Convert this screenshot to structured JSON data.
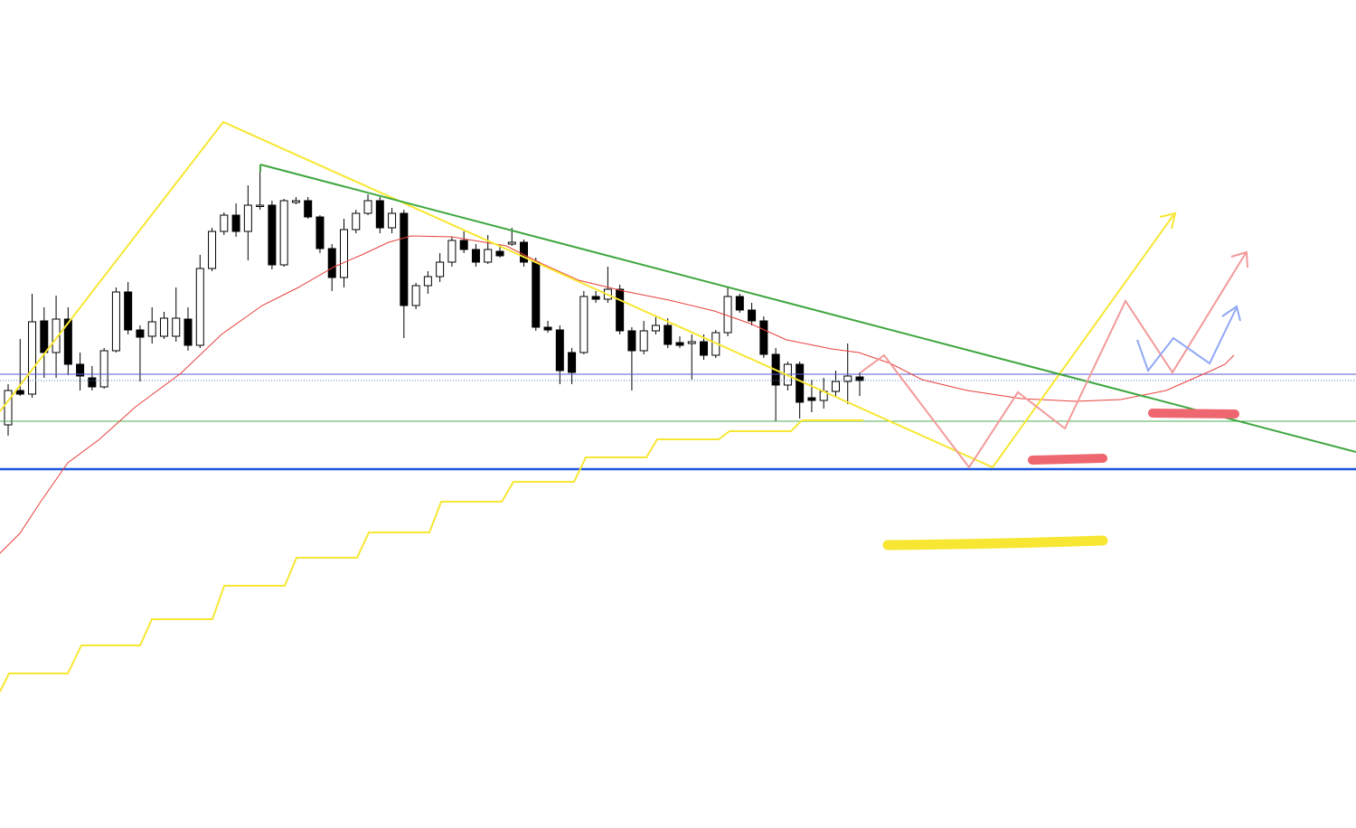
{
  "chart_data": {
    "type": "candlestick",
    "ylim": [
      0,
      916
    ],
    "up_color": "#ffffff",
    "down_color": "#000000",
    "open": [
      446,
      484,
      480,
      561,
      526,
      563,
      513,
      498,
      488,
      528,
      593,
      551,
      544,
      544,
      544,
      563,
      534,
      619,
      660,
      678,
      660,
      689,
      689,
      623,
      692,
      694,
      676,
      641,
      609,
      662,
      680,
      694,
      664,
      680,
      578,
      600,
      610,
      626,
      650,
      640,
      626,
      638,
      646,
      648,
      626,
      554,
      551,
      526,
      526,
      588,
      585,
      596,
      550,
      528,
      550,
      556,
      537,
      536,
      538,
      523,
      548,
      588,
      573,
      561,
      524,
      490,
      513,
      476,
      473,
      483,
      494,
      499
    ],
    "high": [
      491,
      541,
      591,
      576,
      589,
      576,
      526,
      511,
      531,
      598,
      604,
      556,
      576,
      571,
      598,
      576,
      634,
      664,
      681,
      691,
      711,
      731,
      694,
      696,
      698,
      698,
      678,
      646,
      674,
      684,
      701,
      698,
      686,
      684,
      603,
      616,
      636,
      654,
      660,
      646,
      656,
      646,
      664,
      651,
      631,
      561,
      556,
      531,
      594,
      594,
      621,
      601,
      554,
      561,
      566,
      564,
      544,
      546,
      546,
      551,
      598,
      591,
      581,
      566,
      531,
      516,
      516,
      496,
      498,
      506,
      536,
      504
    ],
    "low": [
      434,
      478,
      476,
      498,
      498,
      501,
      484,
      484,
      486,
      526,
      546,
      494,
      536,
      541,
      538,
      528,
      531,
      616,
      656,
      654,
      628,
      684,
      618,
      621,
      690,
      674,
      636,
      594,
      598,
      658,
      678,
      658,
      658,
      542,
      574,
      591,
      604,
      621,
      636,
      621,
      624,
      631,
      644,
      621,
      550,
      548,
      491,
      491,
      524,
      581,
      581,
      546,
      484,
      524,
      546,
      531,
      531,
      496,
      518,
      520,
      544,
      570,
      556,
      520,
      450,
      484,
      453,
      460,
      464,
      476,
      469,
      478
    ],
    "close": [
      484,
      480,
      560,
      526,
      563,
      513,
      500,
      488,
      528,
      593,
      551,
      543,
      560,
      564,
      564,
      534,
      619,
      660,
      678,
      660,
      689,
      689,
      623,
      694,
      694,
      676,
      641,
      609,
      662,
      680,
      694,
      664,
      680,
      578,
      600,
      610,
      626,
      650,
      640,
      626,
      640,
      633,
      648,
      626,
      554,
      551,
      506,
      504,
      588,
      585,
      596,
      550,
      528,
      550,
      556,
      535,
      534,
      538,
      523,
      548,
      588,
      573,
      561,
      524,
      490,
      513,
      471,
      473,
      483,
      494,
      500,
      495
    ]
  }
}
